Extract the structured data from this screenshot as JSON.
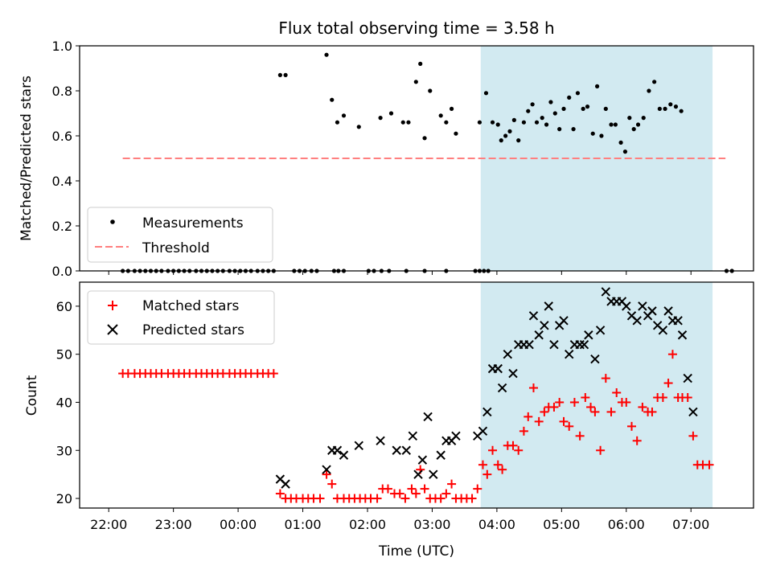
{
  "title": "Flux total observing time = 3.58 h",
  "x_axis": {
    "label": "Time (UTC)",
    "ticks": [
      "22:00",
      "23:00",
      "00:00",
      "01:00",
      "02:00",
      "03:00",
      "04:00",
      "05:00",
      "06:00",
      "07:00"
    ]
  },
  "colors": {
    "measurements": "#000000",
    "threshold": "#ff7f7f",
    "matched": "#ff0000",
    "predicted": "#000000",
    "shade": "#add8e6"
  },
  "chart_data": [
    {
      "type": "scatter",
      "ylabel": "Matched/Predicted stars",
      "ylim": [
        0,
        1.0
      ],
      "yticks": [
        "0.0",
        "0.2",
        "0.4",
        "0.6",
        "0.8",
        "1.0"
      ],
      "xlim": [
        "21:33",
        "07:58"
      ],
      "shaded_interval": [
        "03:45",
        "07:20"
      ],
      "legend": {
        "position": "lower-left",
        "entries": [
          "Measurements",
          "Threshold"
        ]
      },
      "threshold": {
        "name": "Threshold",
        "y": 0.5,
        "x_start": "22:13",
        "x_end": "07:32",
        "style": "dashed"
      },
      "series": [
        {
          "name": "Measurements",
          "zero_times": [
            "22:13",
            "22:18",
            "22:24",
            "22:29",
            "22:34",
            "22:39",
            "22:44",
            "22:49",
            "22:55",
            "23:00",
            "23:05",
            "23:10",
            "23:15",
            "23:21",
            "23:26",
            "23:31",
            "23:36",
            "23:41",
            "23:46",
            "23:52",
            "23:57",
            "00:02",
            "00:07",
            "00:12",
            "00:18",
            "00:23",
            "00:28",
            "00:33",
            "00:52",
            "00:57",
            "01:02",
            "01:08",
            "01:13",
            "01:29",
            "01:33",
            "01:38",
            "02:01",
            "02:06",
            "02:13",
            "02:20",
            "02:36",
            "02:53",
            "03:13",
            "03:40",
            "03:44",
            "03:48",
            "03:52",
            "07:33",
            "07:38"
          ],
          "points": [
            [
              "00:39",
              0.87
            ],
            [
              "00:44",
              0.87
            ],
            [
              "01:22",
              0.96
            ],
            [
              "01:27",
              0.76
            ],
            [
              "01:32",
              0.66
            ],
            [
              "01:38",
              0.69
            ],
            [
              "01:52",
              0.64
            ],
            [
              "02:12",
              0.68
            ],
            [
              "02:22",
              0.7
            ],
            [
              "02:33",
              0.66
            ],
            [
              "02:38",
              0.66
            ],
            [
              "02:45",
              0.84
            ],
            [
              "02:49",
              0.92
            ],
            [
              "02:53",
              0.59
            ],
            [
              "02:58",
              0.8
            ],
            [
              "03:08",
              0.69
            ],
            [
              "03:13",
              0.66
            ],
            [
              "03:18",
              0.72
            ],
            [
              "03:22",
              0.61
            ],
            [
              "03:44",
              0.66
            ],
            [
              "03:50",
              0.79
            ],
            [
              "03:56",
              0.66
            ],
            [
              "04:01",
              0.65
            ],
            [
              "04:04",
              0.58
            ],
            [
              "04:08",
              0.6
            ],
            [
              "04:12",
              0.62
            ],
            [
              "04:16",
              0.67
            ],
            [
              "04:20",
              0.58
            ],
            [
              "04:25",
              0.66
            ],
            [
              "04:29",
              0.71
            ],
            [
              "04:33",
              0.74
            ],
            [
              "04:37",
              0.66
            ],
            [
              "04:42",
              0.68
            ],
            [
              "04:46",
              0.65
            ],
            [
              "04:50",
              0.75
            ],
            [
              "04:54",
              0.7
            ],
            [
              "04:58",
              0.63
            ],
            [
              "05:02",
              0.72
            ],
            [
              "05:07",
              0.77
            ],
            [
              "05:11",
              0.63
            ],
            [
              "05:15",
              0.79
            ],
            [
              "05:20",
              0.72
            ],
            [
              "05:24",
              0.73
            ],
            [
              "05:29",
              0.61
            ],
            [
              "05:33",
              0.82
            ],
            [
              "05:37",
              0.6
            ],
            [
              "05:41",
              0.72
            ],
            [
              "05:46",
              0.65
            ],
            [
              "05:50",
              0.65
            ],
            [
              "05:55",
              0.57
            ],
            [
              "05:59",
              0.53
            ],
            [
              "06:03",
              0.68
            ],
            [
              "06:07",
              0.63
            ],
            [
              "06:11",
              0.65
            ],
            [
              "06:16",
              0.68
            ],
            [
              "06:21",
              0.8
            ],
            [
              "06:26",
              0.84
            ],
            [
              "06:31",
              0.72
            ],
            [
              "06:36",
              0.72
            ],
            [
              "06:41",
              0.74
            ],
            [
              "06:46",
              0.73
            ],
            [
              "06:51",
              0.71
            ]
          ]
        }
      ]
    },
    {
      "type": "scatter",
      "ylabel": "Count",
      "ylim": [
        18,
        65
      ],
      "yticks": [
        "20",
        "30",
        "40",
        "50",
        "60"
      ],
      "xlim": [
        "21:33",
        "07:58"
      ],
      "shaded_interval": [
        "03:45",
        "07:20"
      ],
      "legend": {
        "position": "upper-left",
        "entries": [
          "Matched stars",
          "Predicted stars"
        ]
      },
      "series": [
        {
          "name": "Matched stars",
          "marker": "plus",
          "points": [
            [
              "22:13",
              46
            ],
            [
              "22:18",
              46
            ],
            [
              "22:24",
              46
            ],
            [
              "22:29",
              46
            ],
            [
              "22:34",
              46
            ],
            [
              "22:39",
              46
            ],
            [
              "22:44",
              46
            ],
            [
              "22:49",
              46
            ],
            [
              "22:55",
              46
            ],
            [
              "23:00",
              46
            ],
            [
              "23:05",
              46
            ],
            [
              "23:10",
              46
            ],
            [
              "23:15",
              46
            ],
            [
              "23:21",
              46
            ],
            [
              "23:26",
              46
            ],
            [
              "23:31",
              46
            ],
            [
              "23:36",
              46
            ],
            [
              "23:41",
              46
            ],
            [
              "23:46",
              46
            ],
            [
              "23:52",
              46
            ],
            [
              "23:57",
              46
            ],
            [
              "00:02",
              46
            ],
            [
              "00:07",
              46
            ],
            [
              "00:12",
              46
            ],
            [
              "00:18",
              46
            ],
            [
              "00:23",
              46
            ],
            [
              "00:28",
              46
            ],
            [
              "00:33",
              46
            ],
            [
              "00:39",
              21
            ],
            [
              "00:44",
              20
            ],
            [
              "00:49",
              20
            ],
            [
              "00:54",
              20
            ],
            [
              "01:00",
              20
            ],
            [
              "01:05",
              20
            ],
            [
              "01:10",
              20
            ],
            [
              "01:16",
              20
            ],
            [
              "01:22",
              25
            ],
            [
              "01:27",
              23
            ],
            [
              "01:32",
              20
            ],
            [
              "01:38",
              20
            ],
            [
              "01:43",
              20
            ],
            [
              "01:48",
              20
            ],
            [
              "01:53",
              20
            ],
            [
              "01:58",
              20
            ],
            [
              "02:03",
              20
            ],
            [
              "02:09",
              20
            ],
            [
              "02:14",
              22
            ],
            [
              "02:19",
              22
            ],
            [
              "02:25",
              21
            ],
            [
              "02:30",
              21
            ],
            [
              "02:35",
              20
            ],
            [
              "02:41",
              22
            ],
            [
              "02:45",
              21
            ],
            [
              "02:49",
              26
            ],
            [
              "02:53",
              22
            ],
            [
              "02:58",
              20
            ],
            [
              "03:03",
              20
            ],
            [
              "03:08",
              20
            ],
            [
              "03:13",
              21
            ],
            [
              "03:18",
              23
            ],
            [
              "03:22",
              20
            ],
            [
              "03:27",
              20
            ],
            [
              "03:32",
              20
            ],
            [
              "03:37",
              20
            ],
            [
              "03:42",
              22
            ],
            [
              "03:47",
              27
            ],
            [
              "03:51",
              25
            ],
            [
              "03:56",
              30
            ],
            [
              "04:01",
              27
            ],
            [
              "04:05",
              26
            ],
            [
              "04:10",
              31
            ],
            [
              "04:15",
              31
            ],
            [
              "04:20",
              30
            ],
            [
              "04:25",
              34
            ],
            [
              "04:29",
              37
            ],
            [
              "04:34",
              43
            ],
            [
              "04:39",
              36
            ],
            [
              "04:44",
              38
            ],
            [
              "04:48",
              39
            ],
            [
              "04:53",
              39
            ],
            [
              "04:58",
              40
            ],
            [
              "05:02",
              36
            ],
            [
              "05:07",
              35
            ],
            [
              "05:12",
              40
            ],
            [
              "05:17",
              33
            ],
            [
              "05:22",
              41
            ],
            [
              "05:27",
              39
            ],
            [
              "05:31",
              38
            ],
            [
              "05:36",
              30
            ],
            [
              "05:41",
              45
            ],
            [
              "05:46",
              38
            ],
            [
              "05:51",
              42
            ],
            [
              "05:56",
              40
            ],
            [
              "06:00",
              40
            ],
            [
              "06:05",
              35
            ],
            [
              "06:10",
              32
            ],
            [
              "06:15",
              39
            ],
            [
              "06:20",
              38
            ],
            [
              "06:24",
              38
            ],
            [
              "06:29",
              41
            ],
            [
              "06:34",
              41
            ],
            [
              "06:39",
              44
            ],
            [
              "06:43",
              50
            ],
            [
              "06:48",
              41
            ],
            [
              "06:52",
              41
            ],
            [
              "06:57",
              41
            ],
            [
              "07:02",
              33
            ],
            [
              "07:06",
              27
            ],
            [
              "07:11",
              27
            ],
            [
              "07:17",
              27
            ]
          ]
        },
        {
          "name": "Predicted stars",
          "marker": "x",
          "points": [
            [
              "00:39",
              24
            ],
            [
              "00:44",
              23
            ],
            [
              "01:22",
              26
            ],
            [
              "01:27",
              30
            ],
            [
              "01:32",
              30
            ],
            [
              "01:38",
              29
            ],
            [
              "01:52",
              31
            ],
            [
              "02:12",
              32
            ],
            [
              "02:27",
              30
            ],
            [
              "02:36",
              30
            ],
            [
              "02:42",
              33
            ],
            [
              "02:47",
              25
            ],
            [
              "02:51",
              28
            ],
            [
              "02:56",
              37
            ],
            [
              "03:01",
              25
            ],
            [
              "03:08",
              29
            ],
            [
              "03:13",
              32
            ],
            [
              "03:18",
              32
            ],
            [
              "03:22",
              33
            ],
            [
              "03:42",
              33
            ],
            [
              "03:47",
              34
            ],
            [
              "03:51",
              38
            ],
            [
              "03:56",
              47
            ],
            [
              "04:01",
              47
            ],
            [
              "04:05",
              43
            ],
            [
              "04:10",
              50
            ],
            [
              "04:15",
              46
            ],
            [
              "04:20",
              52
            ],
            [
              "04:25",
              52
            ],
            [
              "04:30",
              52
            ],
            [
              "04:34",
              58
            ],
            [
              "04:39",
              54
            ],
            [
              "04:44",
              56
            ],
            [
              "04:48",
              60
            ],
            [
              "04:53",
              52
            ],
            [
              "04:58",
              56
            ],
            [
              "05:02",
              57
            ],
            [
              "05:07",
              50
            ],
            [
              "05:12",
              52
            ],
            [
              "05:17",
              52
            ],
            [
              "05:21",
              52
            ],
            [
              "05:25",
              54
            ],
            [
              "05:31",
              49
            ],
            [
              "05:36",
              55
            ],
            [
              "05:41",
              63
            ],
            [
              "05:46",
              61
            ],
            [
              "05:51",
              61
            ],
            [
              "05:56",
              61
            ],
            [
              "06:00",
              60
            ],
            [
              "06:05",
              58
            ],
            [
              "06:10",
              57
            ],
            [
              "06:15",
              60
            ],
            [
              "06:20",
              58
            ],
            [
              "06:24",
              59
            ],
            [
              "06:29",
              56
            ],
            [
              "06:34",
              55
            ],
            [
              "06:39",
              59
            ],
            [
              "06:43",
              57
            ],
            [
              "06:48",
              57
            ],
            [
              "06:52",
              54
            ],
            [
              "06:57",
              45
            ],
            [
              "07:02",
              38
            ]
          ]
        }
      ]
    }
  ]
}
